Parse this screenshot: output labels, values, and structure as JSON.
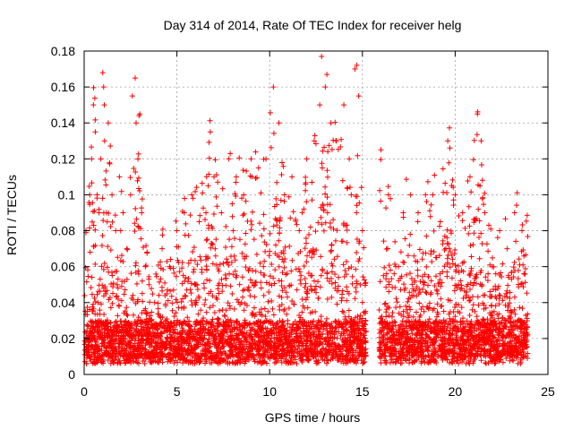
{
  "chart_data": {
    "type": "scatter",
    "title": "Day 314 of 2014, Rate Of TEC Index for receiver helg",
    "xlabel": "GPS time / hours",
    "ylabel": "ROTI / TECUs",
    "xlim": [
      0,
      25
    ],
    "ylim": [
      0,
      0.18
    ],
    "xticks": [
      0,
      5,
      10,
      15,
      20,
      25
    ],
    "xtick_labels": [
      "0",
      "5",
      "10",
      "15",
      "20",
      "25"
    ],
    "yticks": [
      0,
      0.02,
      0.04,
      0.06,
      0.08,
      0.1,
      0.12,
      0.14,
      0.16,
      0.18
    ],
    "ytick_labels": [
      "0",
      "0.02",
      "0.04",
      "0.06",
      "0.08",
      "0.1",
      "0.12",
      "0.14",
      "0.16",
      "0.18"
    ],
    "grid": true,
    "marker": "+",
    "color": "#ff0000",
    "data_gap_hours": [
      15.2,
      15.9
    ],
    "series": [
      {
        "name": "ROTI",
        "x": [
          0.1,
          0.3,
          0.4,
          0.5,
          0.6,
          0.7,
          0.8,
          0.9,
          1.0,
          1.05,
          1.1,
          1.2,
          1.3,
          1.5,
          1.7,
          1.9,
          2.1,
          2.3,
          2.5,
          2.6,
          2.75,
          2.8,
          2.9,
          3.0,
          3.1,
          3.3,
          3.5,
          3.8,
          4.2,
          4.6,
          5.0,
          5.4,
          5.8,
          6.2,
          6.6,
          6.8,
          7.0,
          7.4,
          7.8,
          8.2,
          8.6,
          9.0,
          9.4,
          9.8,
          10.2,
          10.5,
          10.8,
          11.2,
          11.6,
          12.0,
          12.4,
          12.7,
          12.8,
          13.0,
          13.3,
          13.6,
          14.0,
          14.4,
          14.6,
          14.8,
          15.0,
          16.0,
          16.4,
          16.8,
          17.2,
          17.6,
          18.0,
          18.4,
          18.8,
          19.2,
          19.6,
          20.0,
          20.4,
          20.8,
          21.2,
          21.4,
          21.6,
          22.0,
          22.4,
          22.8,
          23.2,
          23.6
        ],
        "y": [
          0.08,
          0.1,
          0.12,
          0.15,
          0.135,
          0.1,
          0.09,
          0.12,
          0.168,
          0.16,
          0.13,
          0.09,
          0.14,
          0.1,
          0.08,
          0.11,
          0.09,
          0.07,
          0.1,
          0.155,
          0.165,
          0.14,
          0.12,
          0.145,
          0.09,
          0.06,
          0.05,
          0.04,
          0.07,
          0.06,
          0.08,
          0.09,
          0.1,
          0.085,
          0.11,
          0.135,
          0.11,
          0.09,
          0.12,
          0.11,
          0.1,
          0.12,
          0.115,
          0.12,
          0.16,
          0.14,
          0.1,
          0.11,
          0.08,
          0.12,
          0.13,
          0.15,
          0.177,
          0.16,
          0.14,
          0.13,
          0.15,
          0.1,
          0.17,
          0.155,
          0.08,
          0.125,
          0.1,
          0.06,
          0.09,
          0.1,
          0.09,
          0.1,
          0.1,
          0.085,
          0.13,
          0.1,
          0.09,
          0.11,
          0.145,
          0.13,
          0.09,
          0.06,
          0.08,
          0.07,
          0.09,
          0.08
        ]
      }
    ]
  }
}
